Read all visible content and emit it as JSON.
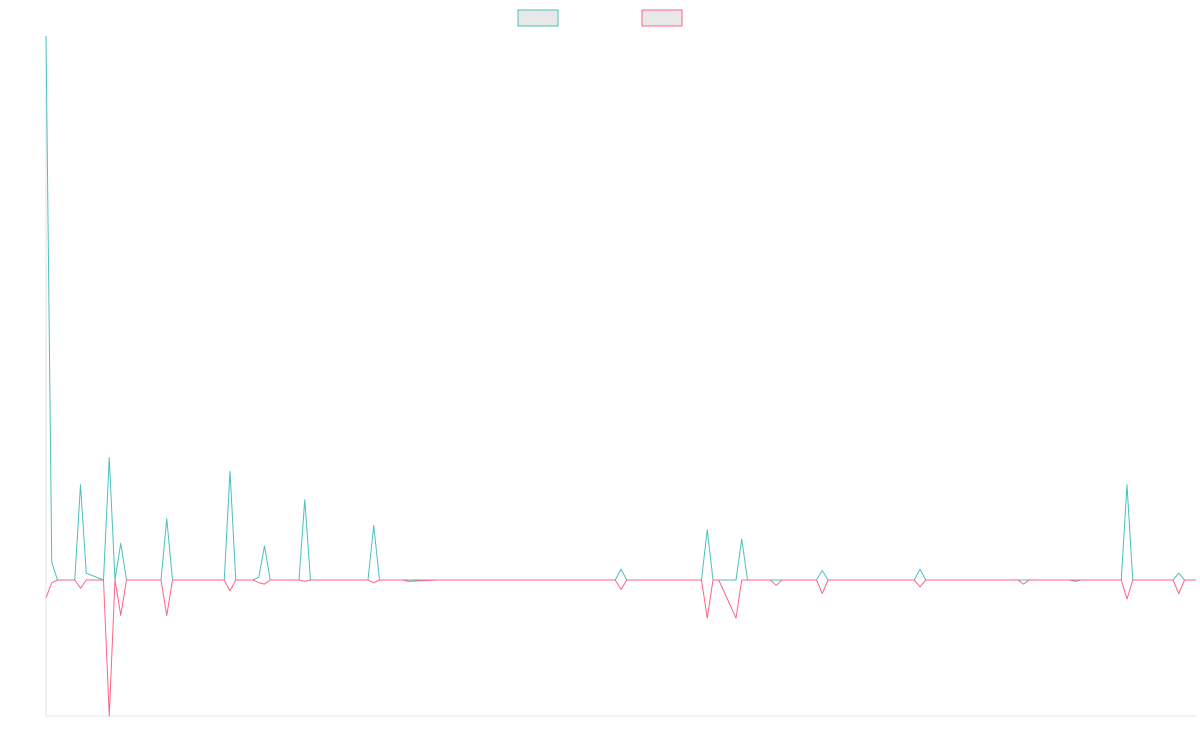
{
  "chart_data": {
    "type": "line",
    "title": "",
    "xlabel": "",
    "ylabel": "",
    "grid": false,
    "legend": "top-center",
    "ylim": [
      -10,
      40
    ],
    "xlim": [
      0,
      200
    ],
    "x": [
      0,
      1,
      2,
      5,
      6,
      7,
      10,
      11,
      12,
      13,
      14,
      20,
      21,
      22,
      31,
      32,
      33,
      36,
      37,
      38,
      39,
      44,
      45,
      46,
      56,
      57,
      58,
      62,
      63,
      68,
      69,
      79,
      80,
      96,
      97,
      99,
      100,
      101,
      114,
      115,
      116,
      117,
      120,
      121,
      122,
      126,
      127,
      128,
      129,
      134,
      135,
      136,
      151,
      152,
      153,
      169,
      170,
      171,
      178,
      179,
      180,
      187,
      188,
      189,
      196,
      197,
      198,
      200
    ],
    "series": [
      {
        "color": "#4bc0c0",
        "values": [
          40,
          1.3,
          0,
          0,
          7,
          0.5,
          0,
          9,
          0,
          2.7,
          0,
          0,
          4.5,
          0,
          0,
          8,
          0,
          0,
          0.2,
          2.5,
          0,
          0,
          5.9,
          0,
          0,
          4,
          0,
          0,
          0,
          0,
          0,
          0,
          0,
          0,
          0,
          0,
          0.8,
          0,
          0,
          3.7,
          0,
          0,
          0,
          3,
          0,
          0,
          0,
          0,
          0,
          0,
          0.7,
          0,
          0,
          0.8,
          0,
          0,
          0,
          0,
          0,
          0,
          0,
          0,
          7,
          0,
          0,
          0.5,
          0,
          0
        ]
      },
      {
        "color": "#ff6384",
        "values": [
          -1.3,
          -0.2,
          0,
          0,
          -0.6,
          0,
          0,
          -10,
          0,
          -2.6,
          0,
          0,
          -2.6,
          0,
          0,
          -0.8,
          0,
          0,
          -0.2,
          -0.3,
          0,
          0,
          -0.1,
          0,
          0,
          -0.2,
          0,
          0,
          -0.1,
          0,
          0,
          0,
          0,
          0,
          0,
          0,
          -0.7,
          0,
          0,
          -2.8,
          0,
          0,
          -2.8,
          0,
          0,
          0,
          -0.4,
          0,
          0,
          0,
          -1,
          0,
          0,
          -0.5,
          0,
          0,
          -0.3,
          0,
          0,
          -0.1,
          0,
          0,
          -1.4,
          0,
          0,
          -1,
          0,
          0
        ]
      }
    ]
  }
}
